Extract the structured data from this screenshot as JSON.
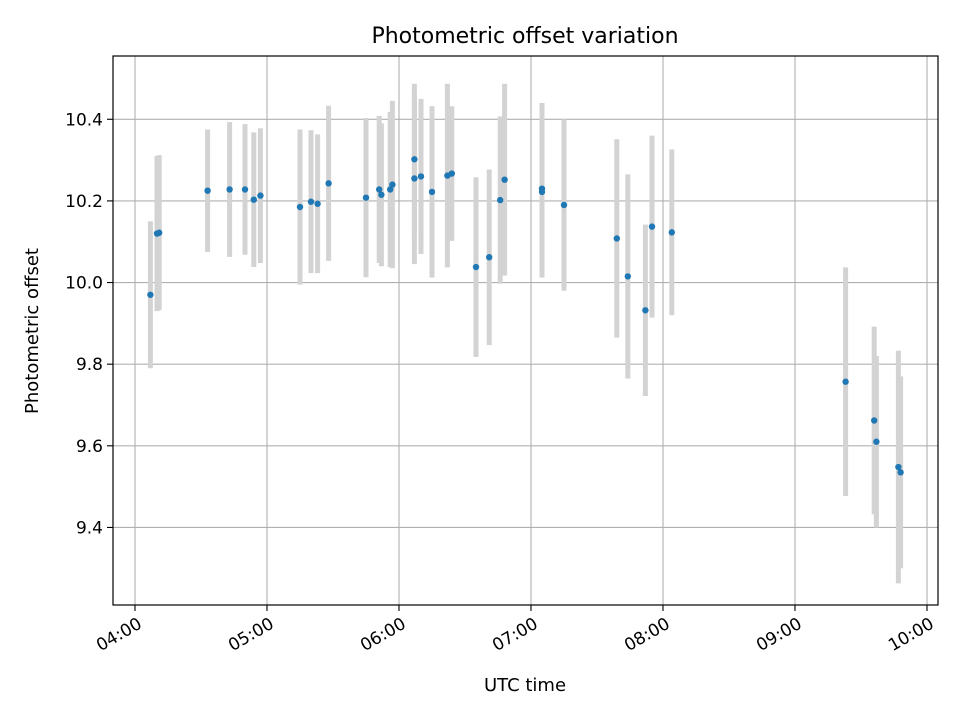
{
  "chart_data": {
    "type": "scatter",
    "title": "Photometric offset variation",
    "xlabel": "UTC time",
    "ylabel": "Photometric offset",
    "xlim": [
      "03:50",
      "10:05"
    ],
    "ylim": [
      9.21,
      10.555
    ],
    "grid": true,
    "x_ticks": [
      "04:00",
      "05:00",
      "06:00",
      "07:00",
      "08:00",
      "09:00",
      "10:00"
    ],
    "y_ticks": [
      "9.4",
      "9.6",
      "9.8",
      "10.0",
      "10.2",
      "10.4"
    ],
    "colors": {
      "point": "#1f77b4",
      "errorbar": "#d3d3d3",
      "grid": "#b0b0b0"
    },
    "series": [
      {
        "error_type": "symmetric",
        "points": [
          {
            "t": "04:07",
            "y": 9.97,
            "err": 0.18
          },
          {
            "t": "04:10",
            "y": 10.12,
            "err": 0.19
          },
          {
            "t": "04:11",
            "y": 10.122,
            "err": 0.19
          },
          {
            "t": "04:33",
            "y": 10.225,
            "err": 0.15
          },
          {
            "t": "04:43",
            "y": 10.228,
            "err": 0.165
          },
          {
            "t": "04:50",
            "y": 10.228,
            "err": 0.16
          },
          {
            "t": "04:54",
            "y": 10.203,
            "err": 0.165
          },
          {
            "t": "04:57",
            "y": 10.213,
            "err": 0.165
          },
          {
            "t": "05:15",
            "y": 10.185,
            "err": 0.19
          },
          {
            "t": "05:20",
            "y": 10.198,
            "err": 0.175
          },
          {
            "t": "05:23",
            "y": 10.193,
            "err": 0.17
          },
          {
            "t": "05:28",
            "y": 10.243,
            "err": 0.19
          },
          {
            "t": "05:45",
            "y": 10.208,
            "err": 0.195
          },
          {
            "t": "05:51",
            "y": 10.228,
            "err": 0.18
          },
          {
            "t": "05:52",
            "y": 10.215,
            "err": 0.175
          },
          {
            "t": "05:56",
            "y": 10.228,
            "err": 0.19
          },
          {
            "t": "05:57",
            "y": 10.24,
            "err": 0.205
          },
          {
            "t": "06:07",
            "y": 10.255,
            "err": 0.21
          },
          {
            "t": "06:07",
            "y": 10.302,
            "err": 0.185
          },
          {
            "t": "06:10",
            "y": 10.26,
            "err": 0.19
          },
          {
            "t": "06:15",
            "y": 10.222,
            "err": 0.21
          },
          {
            "t": "06:22",
            "y": 10.262,
            "err": 0.225
          },
          {
            "t": "06:24",
            "y": 10.267,
            "err": 0.165
          },
          {
            "t": "06:35",
            "y": 10.038,
            "err": 0.22
          },
          {
            "t": "06:41",
            "y": 10.062,
            "err": 0.215
          },
          {
            "t": "06:46",
            "y": 10.202,
            "err": 0.205
          },
          {
            "t": "06:48",
            "y": 10.252,
            "err": 0.235
          },
          {
            "t": "07:05",
            "y": 10.23,
            "err": 0.21
          },
          {
            "t": "07:05",
            "y": 10.222,
            "err": 0.21
          },
          {
            "t": "07:15",
            "y": 10.19,
            "err": 0.21
          },
          {
            "t": "07:39",
            "y": 10.108,
            "err": 0.243
          },
          {
            "t": "07:44",
            "y": 10.015,
            "err": 0.25
          },
          {
            "t": "07:52",
            "y": 9.932,
            "err": 0.21
          },
          {
            "t": "07:55",
            "y": 10.137,
            "err": 0.223
          },
          {
            "t": "08:04",
            "y": 10.123,
            "err": 0.203
          },
          {
            "t": "09:23",
            "y": 9.757,
            "err": 0.28
          },
          {
            "t": "09:36",
            "y": 9.662,
            "err": 0.23
          },
          {
            "t": "09:37",
            "y": 9.61,
            "err": 0.21
          },
          {
            "t": "09:47",
            "y": 9.548,
            "err": 0.285
          },
          {
            "t": "09:48",
            "y": 9.535,
            "err": 0.235
          }
        ]
      }
    ]
  }
}
